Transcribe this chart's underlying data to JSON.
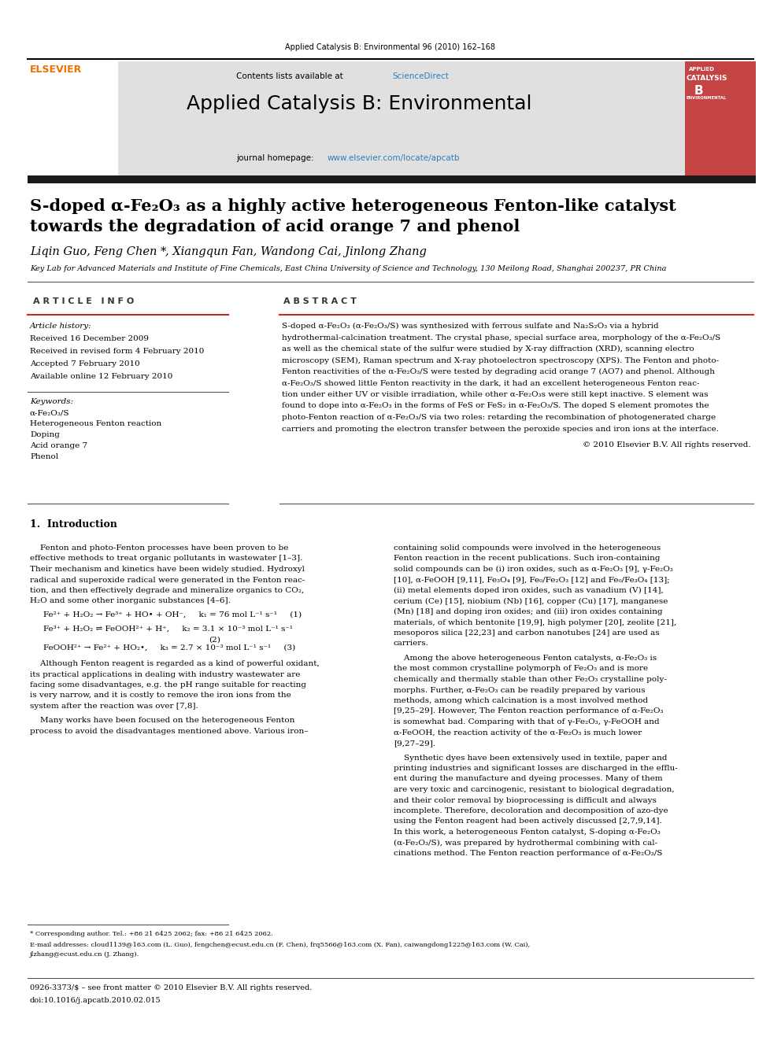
{
  "page_width": 9.92,
  "page_height": 13.23,
  "dpi": 100,
  "bg_color": "#ffffff",
  "journal_ref": "Applied Catalysis B: Environmental 96 (2010) 162–168",
  "sciencedirect_color": "#2e7ebb",
  "journal_name": "Applied Catalysis B: Environmental",
  "journal_url": "www.elsevier.com/locate/apcatb",
  "journal_url_color": "#2e7ebb",
  "header_bg": "#e0e0e0",
  "header_bar_color": "#1a1a1a",
  "title_line1": "S-doped α-Fe₂O₃ as a highly active heterogeneous Fenton-like catalyst",
  "title_line2": "towards the degradation of acid orange 7 and phenol",
  "affiliation": "Key Lab for Advanced Materials and Institute of Fine Chemicals, East China University of Science and Technology, 130 Meilong Road, Shanghai 200237, PR China",
  "article_info_header": "A R T I C L E   I N F O",
  "abstract_header": "A B S T R A C T",
  "article_history_label": "Article history:",
  "received1": "Received 16 December 2009",
  "received2": "Received in revised form 4 February 2010",
  "accepted": "Accepted 7 February 2010",
  "available": "Available online 12 February 2010",
  "keywords_label": "Keywords:",
  "keyword1": "α-Fe₂O₃/S",
  "keyword2": "Heterogeneous Fenton reaction",
  "keyword3": "Doping",
  "keyword4": "Acid orange 7",
  "keyword5": "Phenol",
  "copyright": "© 2010 Elsevier B.V. All rights reserved.",
  "intro_header": "1.  Introduction",
  "footer_note": "* Corresponding author. Tel.: +86 21 6425 2062; fax: +86 21 6425 2062.",
  "footer_email": "E-mail addresses: cloud1139@163.com (L. Guo), fengchen@ecust.edu.cn (F. Chen), frq5566@163.com (X. Fan), caiwangdong1225@163.com (W. Cai),",
  "footer_email2": "jlzhang@ecust.edu.cn (J. Zhang).",
  "footer_issn": "0926-3373/$ – see front matter © 2010 Elsevier B.V. All rights reserved.",
  "footer_doi": "doi:10.1016/j.apcatb.2010.02.015"
}
